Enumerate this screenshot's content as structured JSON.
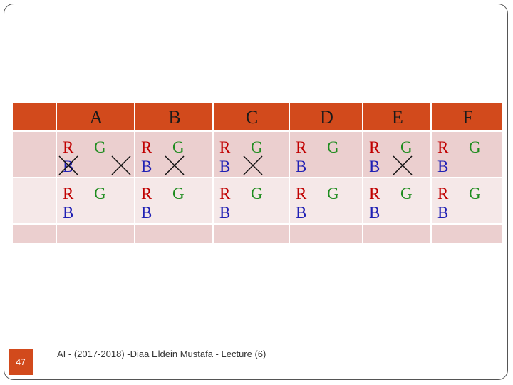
{
  "table": {
    "columns": [
      "A",
      "B",
      "C",
      "D",
      "E",
      "F"
    ],
    "rows": [
      [
        {
          "r": "R",
          "g": "G",
          "b": "B"
        },
        {
          "r": "R",
          "g": "G",
          "b": "B"
        },
        {
          "r": "R",
          "g": "G",
          "b": "B"
        },
        {
          "r": "R",
          "g": "G",
          "b": "B"
        },
        {
          "r": "R",
          "g": "G",
          "b": "B"
        },
        {
          "r": "R",
          "g": "G",
          "b": "B"
        }
      ],
      [
        {
          "r": "R",
          "g": "G",
          "b": "B"
        },
        {
          "r": "R",
          "g": "G",
          "b": "B"
        },
        {
          "r": "R",
          "g": "G",
          "b": "B"
        },
        {
          "r": "R",
          "g": "G",
          "b": "B"
        },
        {
          "r": "R",
          "g": "G",
          "b": "B"
        },
        {
          "r": "R",
          "g": "G",
          "b": "B"
        }
      ]
    ]
  },
  "footer": {
    "slide_number": "47",
    "text": "AI - (2017-2018) -Diaa Eldein Mustafa - Lecture (6)"
  }
}
